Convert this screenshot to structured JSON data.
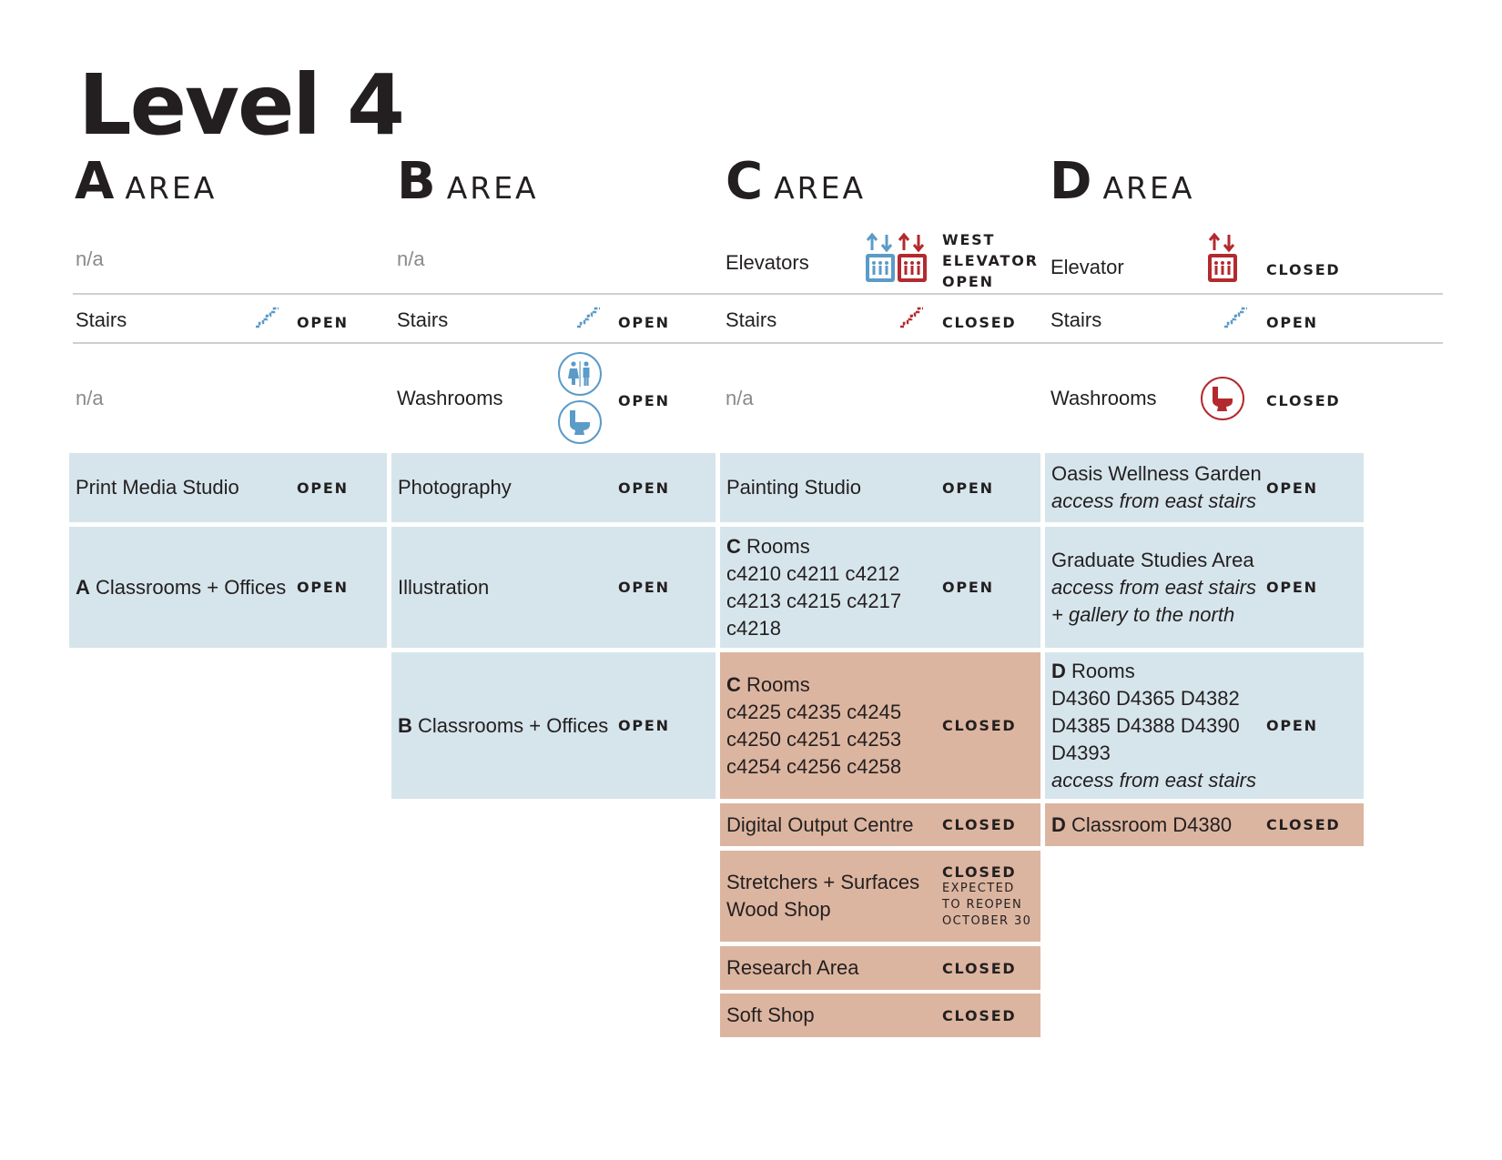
{
  "title": "Level 4",
  "area_word": "AREA",
  "areas": [
    {
      "letter": "A",
      "word": "AREA"
    },
    {
      "letter": "B",
      "word": "AREA"
    },
    {
      "letter": "C",
      "word": "AREA"
    },
    {
      "letter": "D",
      "word": "AREA"
    }
  ],
  "status_open": "OPEN",
  "status_closed": "CLOSED",
  "colors": {
    "open_bg": "#d6e5ec",
    "closed_bg": "#dcb5a0",
    "open_icon": "#5b9bc8",
    "closed_icon": "#b32a2e"
  },
  "elevators": {
    "a": "n/a",
    "b": "n/a",
    "c": {
      "label": "Elevators",
      "status": [
        "WEST",
        "ELEVATOR",
        "OPEN"
      ],
      "icons": [
        "elevator-open-icon",
        "elevator-closed-icon"
      ]
    },
    "d": {
      "label": "Elevator",
      "status": "CLOSED",
      "icon": "elevator-closed-icon"
    }
  },
  "stairs": {
    "label": "Stairs",
    "a": "OPEN",
    "b": "OPEN",
    "c": "CLOSED",
    "d": "OPEN"
  },
  "washrooms": {
    "a": "n/a",
    "b": {
      "label": "Washrooms",
      "status": "OPEN",
      "icons": [
        "washroom-people-icon",
        "toilet-icon"
      ]
    },
    "c": "n/a",
    "d": {
      "label": "Washrooms",
      "status": "CLOSED",
      "icon": "toilet-icon"
    }
  },
  "a_cells": [
    {
      "name": "Print Media Studio",
      "status": "OPEN"
    },
    {
      "bold": "A",
      "name": "Classrooms + Offices",
      "status": "OPEN"
    }
  ],
  "b_cells": [
    {
      "name": "Photography",
      "status": "OPEN"
    },
    {
      "name": "Illustration",
      "status": "OPEN"
    },
    {
      "bold": "B",
      "name": "Classrooms + Offices",
      "status": "OPEN"
    }
  ],
  "c_cells": [
    {
      "name": "Painting Studio",
      "status": "OPEN"
    },
    {
      "bold": "C",
      "name": "Rooms",
      "lines": [
        "c4210 c4211 c4212",
        "c4213 c4215 c4217",
        "c4218"
      ],
      "status": "OPEN"
    },
    {
      "bold": "C",
      "name": "Rooms",
      "lines": [
        "c4225 c4235 c4245",
        "c4250 c4251 c4253",
        "c4254 c4256 c4258"
      ],
      "status": "CLOSED"
    },
    {
      "name": "Digital Output Centre",
      "status": "CLOSED"
    },
    {
      "name": "Stretchers + Surfaces",
      "name2": "Wood Shop",
      "status": "CLOSED",
      "note": [
        "EXPECTED",
        "TO REOPEN",
        "OCTOBER 30"
      ]
    },
    {
      "name": "Research Area",
      "status": "CLOSED"
    },
    {
      "name": "Soft Shop",
      "status": "CLOSED"
    }
  ],
  "d_cells": [
    {
      "name": "Oasis Wellness Garden",
      "italic": "access from east stairs",
      "status": "OPEN"
    },
    {
      "name": "Graduate Studies Area",
      "italic1": "access from east stairs",
      "italic2": "+ gallery to the north",
      "status": "OPEN"
    },
    {
      "bold": "D",
      "name": "Rooms",
      "lines": [
        "D4360 D4365 D4382",
        "D4385 D4388 D4390",
        "D4393"
      ],
      "italic": "access from east stairs",
      "status": "OPEN"
    },
    {
      "bold": "D",
      "name": "Classroom D4380",
      "status": "CLOSED"
    }
  ]
}
